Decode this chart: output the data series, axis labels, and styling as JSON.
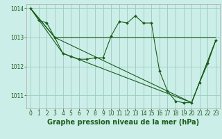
{
  "background_color": "#cceee8",
  "grid_color": "#99ccbb",
  "line_color": "#1a5c1a",
  "marker_color": "#1a5c1a",
  "xlabel": "Graphe pression niveau de la mer (hPa)",
  "ylim": [
    1010.55,
    1014.15
  ],
  "xlim": [
    -0.5,
    23.5
  ],
  "yticks": [
    1011,
    1012,
    1013,
    1014
  ],
  "xticks": [
    0,
    1,
    2,
    3,
    4,
    5,
    6,
    7,
    8,
    9,
    10,
    11,
    12,
    13,
    14,
    15,
    16,
    17,
    18,
    19,
    20,
    21,
    22,
    23
  ],
  "series1_x": [
    0,
    1,
    2,
    3,
    4,
    5,
    6,
    7,
    8,
    9,
    10,
    11,
    12,
    13,
    14,
    15,
    16,
    17,
    18,
    19,
    20,
    21,
    22,
    23
  ],
  "series1_y": [
    1014.0,
    1013.6,
    1013.5,
    1013.0,
    1012.45,
    1012.35,
    1012.25,
    1012.25,
    1012.3,
    1012.3,
    1013.05,
    1013.55,
    1013.5,
    1013.75,
    1013.5,
    1013.5,
    1011.85,
    1011.15,
    1010.8,
    1010.75,
    1010.75,
    1011.45,
    1012.1,
    1012.9
  ],
  "series2_x": [
    0,
    3,
    10,
    23
  ],
  "series2_y": [
    1014.0,
    1013.0,
    1013.0,
    1013.0
  ],
  "series3_x": [
    0,
    3,
    20,
    23
  ],
  "series3_y": [
    1014.0,
    1013.0,
    1010.75,
    1012.9
  ],
  "series4_x": [
    0,
    4,
    20,
    23
  ],
  "series4_y": [
    1014.0,
    1012.45,
    1010.75,
    1012.9
  ],
  "tick_fontsize": 5.5,
  "label_fontsize": 7.0,
  "tick_color": "#1a5c1a",
  "label_color": "#1a5c1a"
}
